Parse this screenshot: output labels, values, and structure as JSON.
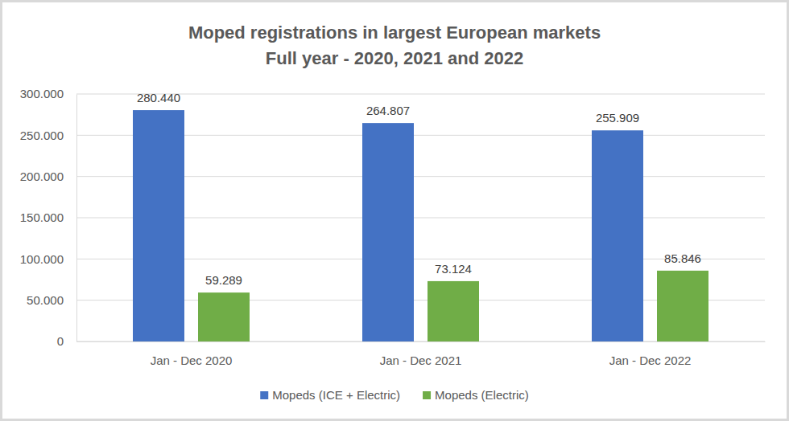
{
  "chart_data": {
    "type": "bar",
    "title": "Moped registrations in largest European markets",
    "subtitle": "Full year - 2020, 2021 and 2022",
    "categories": [
      "Jan - Dec 2020",
      "Jan - Dec 2021",
      "Jan - Dec 2022"
    ],
    "series": [
      {
        "name": "Mopeds (ICE + Electric)",
        "color": "#4472c4",
        "values": [
          280440,
          264807,
          255909
        ],
        "value_labels": [
          "280.440",
          "264.807",
          "255.909"
        ]
      },
      {
        "name": "Mopeds (Electric)",
        "color": "#70ad47",
        "values": [
          59289,
          73124,
          85846
        ],
        "value_labels": [
          "59.289",
          "73.124",
          "85.846"
        ]
      }
    ],
    "ylim": [
      0,
      300000
    ],
    "yticks": [
      0,
      {
        "value": 50000,
        "label": "50.000"
      },
      {
        "value": 100000,
        "label": "100.000"
      },
      {
        "value": 150000,
        "label": "150.000"
      },
      {
        "value": 200000,
        "label": "200.000"
      },
      {
        "value": 250000,
        "label": "250.000"
      },
      {
        "value": 300000,
        "label": "300.000"
      }
    ],
    "grid": true,
    "legend": "bottom",
    "data_labels": true
  }
}
